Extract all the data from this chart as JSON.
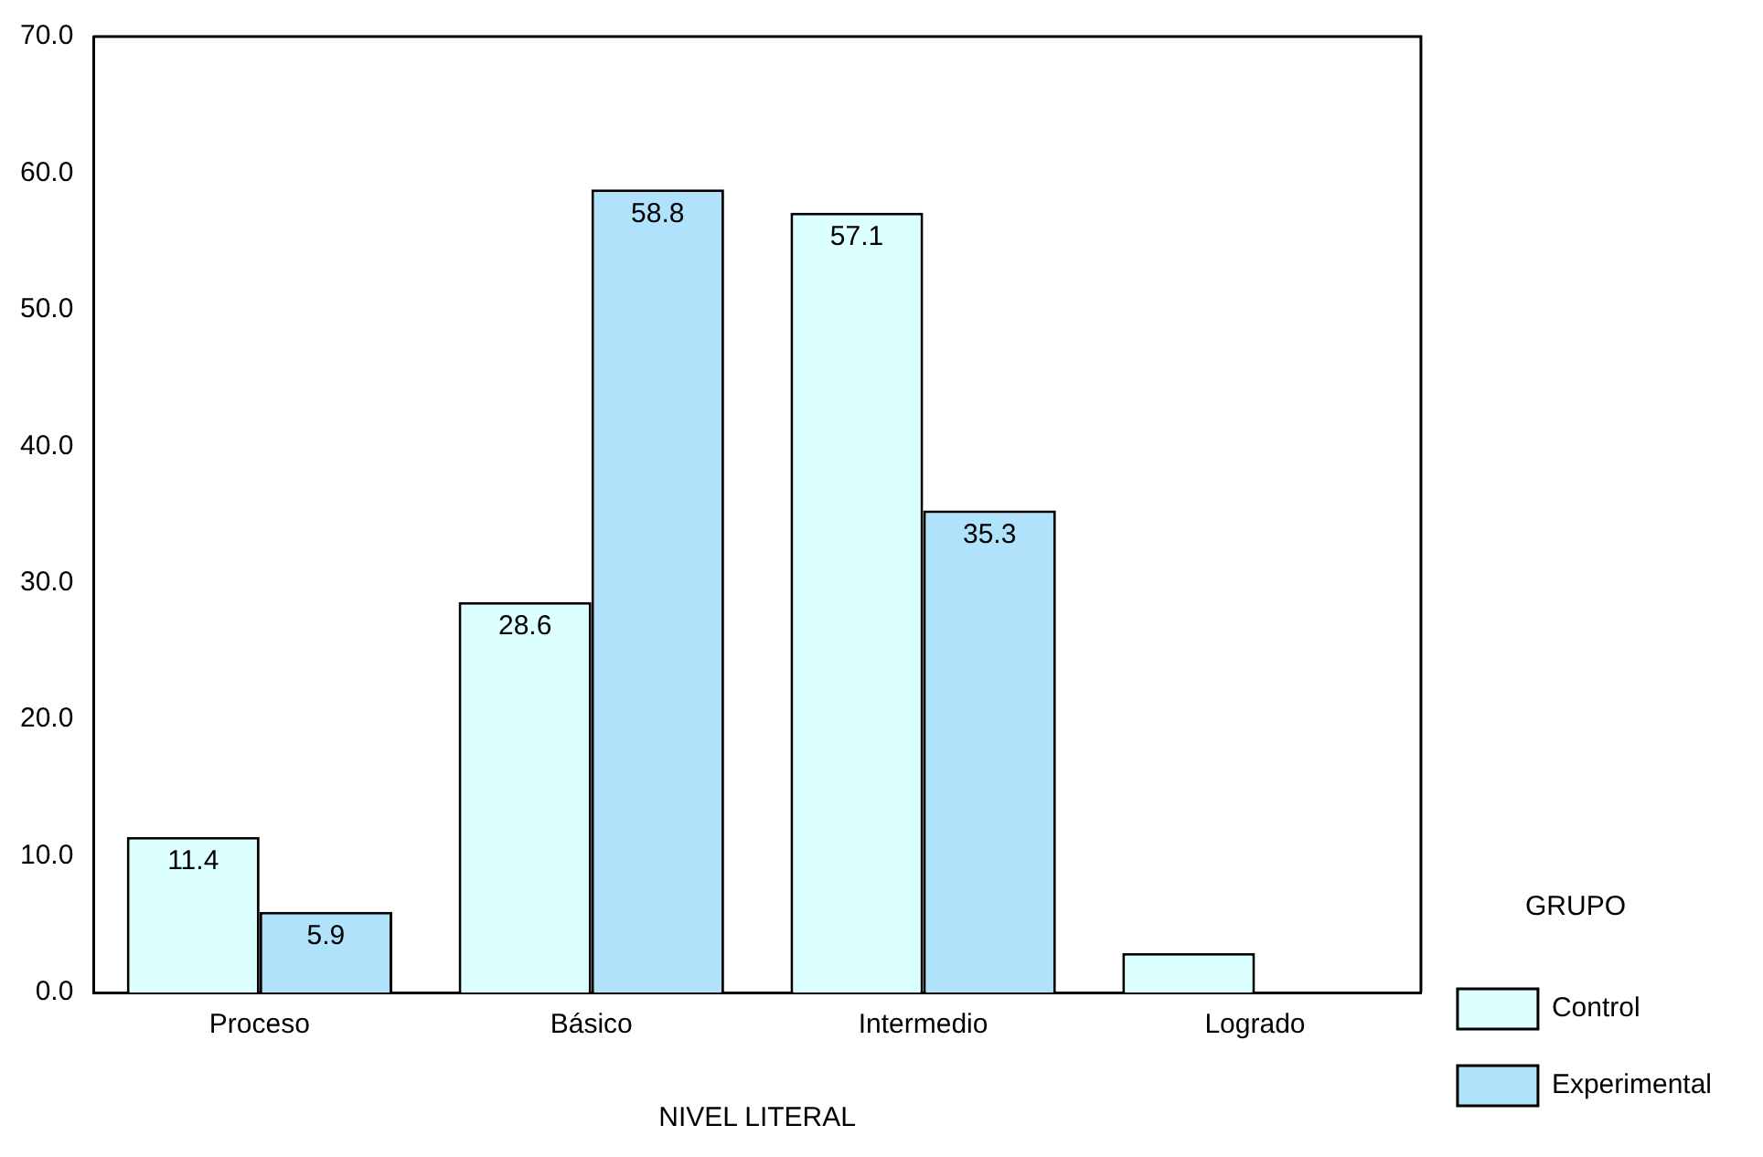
{
  "chart_data": {
    "type": "bar",
    "xlabel": "NIVEL LITERAL",
    "legend_title": "GRUPO",
    "legend": "right",
    "grid": false,
    "categories": [
      "Proceso",
      "Básico",
      "Intermedio",
      "Logrado"
    ],
    "series": [
      {
        "name": "Control",
        "color": "#dcffff",
        "values": [
          11.4,
          28.6,
          57.1,
          2.9
        ],
        "value_labels": [
          "11.4",
          "28.6",
          "57.1",
          null
        ]
      },
      {
        "name": "Experimental",
        "color": "#b0e2fc",
        "values": [
          5.9,
          58.8,
          35.3,
          0
        ],
        "value_labels": [
          "5.9",
          "58.8",
          "35.3",
          null
        ]
      }
    ],
    "ylim": [
      0,
      70
    ],
    "yticks": [
      {
        "value": 0,
        "label": "0.0"
      },
      {
        "value": 10,
        "label": "10.0"
      },
      {
        "value": 20,
        "label": "20.0"
      },
      {
        "value": 30,
        "label": "30.0"
      },
      {
        "value": 40,
        "label": "40.0"
      },
      {
        "value": 50,
        "label": "50.0"
      },
      {
        "value": 60,
        "label": "60.0"
      },
      {
        "value": 70,
        "label": "70.0"
      }
    ]
  }
}
